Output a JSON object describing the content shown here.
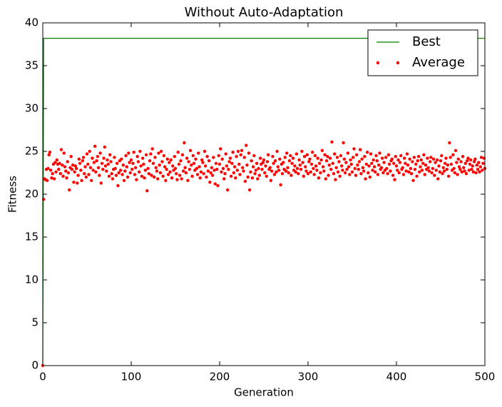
{
  "chart_data": {
    "type": "scatter",
    "title": "Without Auto-Adaptation",
    "xlabel": "Generation",
    "ylabel": "Fitness",
    "xlim": [
      0,
      500
    ],
    "xticks": [
      0,
      100,
      200,
      300,
      400,
      500
    ],
    "ylim": [
      0,
      40
    ],
    "yticks": [
      0,
      5,
      10,
      15,
      20,
      25,
      30,
      35,
      40
    ],
    "legend": "upper right",
    "series": [
      {
        "name": "Best",
        "color": "#008000",
        "style": "line",
        "x": [
          0,
          1,
          500
        ],
        "values": [
          0,
          38.2,
          38.2
        ]
      },
      {
        "name": "Average",
        "color": "#ff0000",
        "style": "points",
        "x": [
          0,
          1,
          2,
          3,
          4,
          5,
          6,
          7,
          8,
          9,
          10,
          11,
          12,
          13,
          14,
          15,
          16,
          17,
          18,
          19,
          20,
          21,
          22,
          23,
          24,
          25,
          26,
          27,
          28,
          29,
          30,
          31,
          32,
          33,
          34,
          35,
          36,
          37,
          38,
          39,
          40,
          41,
          42,
          43,
          44,
          45,
          46,
          47,
          48,
          49,
          50,
          51,
          52,
          53,
          54,
          55,
          56,
          57,
          58,
          59,
          60,
          61,
          62,
          63,
          64,
          65,
          66,
          67,
          68,
          69,
          70,
          71,
          72,
          73,
          74,
          75,
          76,
          77,
          78,
          79,
          80,
          81,
          82,
          83,
          84,
          85,
          86,
          87,
          88,
          89,
          90,
          91,
          92,
          93,
          94,
          95,
          96,
          97,
          98,
          99,
          100,
          101,
          102,
          103,
          104,
          105,
          106,
          107,
          108,
          109,
          110,
          111,
          112,
          113,
          114,
          115,
          116,
          117,
          118,
          119,
          120,
          121,
          122,
          123,
          124,
          125,
          126,
          127,
          128,
          129,
          130,
          131,
          132,
          133,
          134,
          135,
          136,
          137,
          138,
          139,
          140,
          141,
          142,
          143,
          144,
          145,
          146,
          147,
          148,
          149,
          150,
          151,
          152,
          153,
          154,
          155,
          156,
          157,
          158,
          159,
          160,
          161,
          162,
          163,
          164,
          165,
          166,
          167,
          168,
          169,
          170,
          171,
          172,
          173,
          174,
          175,
          176,
          177,
          178,
          179,
          180,
          181,
          182,
          183,
          184,
          185,
          186,
          187,
          188,
          189,
          190,
          191,
          192,
          193,
          194,
          195,
          196,
          197,
          198,
          199,
          200,
          201,
          202,
          203,
          204,
          205,
          206,
          207,
          208,
          209,
          210,
          211,
          212,
          213,
          214,
          215,
          216,
          217,
          218,
          219,
          220,
          221,
          222,
          223,
          224,
          225,
          226,
          227,
          228,
          229,
          230,
          231,
          232,
          233,
          234,
          235,
          236,
          237,
          238,
          239,
          240,
          241,
          242,
          243,
          244,
          245,
          246,
          247,
          248,
          249,
          250,
          251,
          252,
          253,
          254,
          255,
          256,
          257,
          258,
          259,
          260,
          261,
          262,
          263,
          264,
          265,
          266,
          267,
          268,
          269,
          270,
          271,
          272,
          273,
          274,
          275,
          276,
          277,
          278,
          279,
          280,
          281,
          282,
          283,
          284,
          285,
          286,
          287,
          288,
          289,
          290,
          291,
          292,
          293,
          294,
          295,
          296,
          297,
          298,
          299,
          300,
          301,
          302,
          303,
          304,
          305,
          306,
          307,
          308,
          309,
          310,
          311,
          312,
          313,
          314,
          315,
          316,
          317,
          318,
          319,
          320,
          321,
          322,
          323,
          324,
          325,
          326,
          327,
          328,
          329,
          330,
          331,
          332,
          333,
          334,
          335,
          336,
          337,
          338,
          339,
          340,
          341,
          342,
          343,
          344,
          345,
          346,
          347,
          348,
          349,
          350,
          351,
          352,
          353,
          354,
          355,
          356,
          357,
          358,
          359,
          360,
          361,
          362,
          363,
          364,
          365,
          366,
          367,
          368,
          369,
          370,
          371,
          372,
          373,
          374,
          375,
          376,
          377,
          378,
          379,
          380,
          381,
          382,
          383,
          384,
          385,
          386,
          387,
          388,
          389,
          390,
          391,
          392,
          393,
          394,
          395,
          396,
          397,
          398,
          399,
          400,
          401,
          402,
          403,
          404,
          405,
          406,
          407,
          408,
          409,
          410,
          411,
          412,
          413,
          414,
          415,
          416,
          417,
          418,
          419,
          420,
          421,
          422,
          423,
          424,
          425,
          426,
          427,
          428,
          429,
          430,
          431,
          432,
          433,
          434,
          435,
          436,
          437,
          438,
          439,
          440,
          441,
          442,
          443,
          444,
          445,
          446,
          447,
          448,
          449,
          450,
          451,
          452,
          453,
          454,
          455,
          456,
          457,
          458,
          459,
          460,
          461,
          462,
          463,
          464,
          465,
          466,
          467,
          468,
          469,
          470,
          471,
          472,
          473,
          474,
          475,
          476,
          477,
          478,
          479,
          480,
          481,
          482,
          483,
          484,
          485,
          486,
          487,
          488,
          489,
          490,
          491,
          492,
          493,
          494,
          495,
          496,
          497,
          498,
          499,
          500
        ],
        "values": [
          0,
          19.4,
          21.8,
          21.7,
          22.9,
          21.6,
          23.0,
          24.6,
          24.9,
          22.8,
          21.9,
          22.4,
          23.5,
          21.8,
          23.7,
          22.6,
          24.0,
          23.5,
          22.9,
          23.6,
          22.4,
          25.2,
          23.4,
          22.1,
          24.8,
          23.2,
          22.7,
          21.9,
          23.8,
          22.5,
          20.5,
          23.1,
          24.4,
          22.9,
          23.4,
          21.4,
          22.6,
          23.3,
          23.0,
          21.3,
          22.2,
          24.1,
          23.6,
          22.8,
          21.6,
          23.9,
          24.3,
          22.4,
          23.2,
          22.0,
          24.7,
          23.5,
          22.3,
          25.0,
          23.1,
          21.6,
          24.2,
          22.8,
          23.7,
          25.6,
          22.6,
          23.9,
          24.4,
          23.1,
          22.2,
          24.8,
          21.3,
          23.6,
          22.9,
          24.2,
          25.5,
          23.3,
          22.7,
          24.0,
          23.5,
          22.1,
          24.6,
          23.8,
          22.4,
          21.8,
          22.9,
          24.3,
          23.0,
          22.2,
          23.6,
          21.0,
          22.5,
          23.9,
          22.8,
          24.1,
          22.3,
          23.4,
          21.6,
          22.7,
          24.5,
          23.2,
          22.0,
          24.8,
          23.7,
          22.5,
          24.0,
          22.9,
          23.6,
          24.9,
          22.3,
          23.1,
          21.7,
          24.4,
          23.8,
          22.6,
          25.0,
          23.3,
          22.1,
          24.2,
          23.5,
          21.9,
          22.8,
          24.6,
          20.4,
          23.0,
          22.4,
          23.9,
          24.7,
          22.2,
          25.3,
          23.6,
          22.0,
          24.3,
          23.1,
          22.7,
          21.8,
          24.8,
          23.4,
          22.5,
          25.0,
          23.8,
          22.1,
          24.5,
          23.2,
          21.6,
          22.9,
          24.1,
          22.3,
          23.7,
          22.6,
          24.0,
          21.9,
          23.3,
          22.8,
          24.4,
          23.0,
          22.4,
          21.7,
          24.9,
          23.5,
          22.2,
          23.9,
          21.8,
          24.6,
          22.7,
          26.0,
          23.1,
          22.5,
          24.2,
          21.6,
          23.8,
          22.9,
          25.1,
          23.4,
          22.1,
          24.5,
          23.6,
          22.8,
          24.1,
          23.0,
          22.3,
          24.8,
          23.2,
          21.9,
          22.6,
          24.0,
          23.7,
          22.4,
          25.0,
          23.3,
          22.0,
          24.4,
          22.7,
          23.9,
          21.4,
          22.5,
          23.1,
          22.2,
          24.3,
          22.8,
          21.2,
          23.6,
          22.9,
          21.0,
          24.5,
          23.5,
          25.3,
          22.6,
          24.1,
          23.0,
          21.8,
          22.4,
          24.7,
          23.3,
          20.5,
          22.9,
          23.8,
          24.2,
          22.1,
          23.6,
          24.9,
          22.5,
          23.2,
          21.9,
          24.4,
          22.8,
          25.0,
          23.5,
          22.3,
          24.6,
          25.1,
          23.1,
          22.7,
          24.3,
          21.5,
          25.7,
          23.4,
          22.0,
          24.8,
          20.5,
          22.6,
          23.9,
          21.9,
          23.2,
          24.5,
          22.4,
          22.8,
          23.6,
          21.8,
          23.0,
          22.2,
          24.2,
          23.5,
          22.9,
          23.7,
          24.0,
          22.5,
          23.3,
          22.1,
          23.8,
          24.6,
          22.9,
          23.1,
          21.6,
          22.7,
          24.4,
          23.6,
          22.3,
          23.9,
          22.6,
          25.0,
          23.2,
          22.8,
          24.1,
          21.1,
          23.5,
          22.4,
          23.7,
          22.9,
          24.3,
          22.7,
          24.8,
          23.1,
          22.5,
          23.9,
          24.5,
          22.2,
          23.6,
          24.2,
          22.8,
          23.3,
          22.6,
          24.7,
          23.0,
          22.4,
          24.0,
          23.4,
          22.9,
          25.0,
          23.7,
          22.1,
          24.4,
          23.2,
          22.7,
          24.6,
          22.4,
          23.8,
          24.1,
          22.6,
          23.5,
          24.9,
          23.0,
          22.3,
          24.5,
          23.3,
          22.8,
          24.2,
          21.9,
          23.6,
          22.5,
          24.0,
          25.1,
          23.2,
          22.7,
          24.6,
          21.8,
          23.9,
          24.4,
          22.2,
          23.4,
          24.2,
          22.9,
          26.1,
          23.6,
          22.4,
          24.7,
          21.7,
          23.1,
          24.3,
          22.6,
          23.8,
          22.1,
          24.5,
          23.3,
          22.8,
          26.0,
          24.1,
          22.5,
          23.7,
          22.9,
          24.8,
          23.2,
          22.3,
          24.0,
          23.5,
          22.6,
          24.3,
          25.3,
          23.0,
          22.2,
          24.6,
          23.4,
          22.9,
          23.8,
          25.2,
          22.4,
          24.1,
          23.1,
          22.7,
          24.4,
          21.8,
          23.5,
          24.9,
          22.5,
          23.3,
          22.0,
          24.7,
          23.6,
          22.8,
          24.0,
          23.2,
          22.6,
          24.5,
          23.9,
          22.3,
          23.4,
          24.8,
          22.9,
          23.1,
          24.2,
          22.5,
          23.7,
          22.8,
          24.3,
          23.0,
          22.4,
          24.6,
          23.5,
          22.7,
          23.9,
          24.1,
          22.2,
          23.6,
          21.7,
          24.4,
          23.3,
          22.8,
          24.0,
          22.5,
          23.7,
          24.5,
          22.9,
          23.1,
          22.3,
          24.2,
          23.6,
          22.7,
          24.7,
          23.4,
          22.6,
          24.1,
          23.0,
          22.4,
          23.8,
          21.6,
          24.3,
          22.9,
          23.5,
          22.1,
          23.9,
          24.4,
          22.6,
          23.2,
          24.0,
          22.8,
          23.6,
          24.6,
          22.3,
          23.4,
          22.9,
          24.2,
          23.1,
          22.7,
          23.8,
          24.3,
          22.5,
          23.0,
          24.1,
          22.2,
          23.7,
          22.8,
          24.0,
          21.8,
          23.3,
          22.6,
          23.9,
          24.5,
          22.4,
          23.1,
          22.7,
          23.6,
          24.2,
          22.9,
          23.4,
          22.1,
          26.0,
          24.3,
          23.5,
          22.8,
          24.6,
          23.0,
          22.5,
          25.1,
          23.7,
          22.3,
          24.1,
          23.2,
          22.9,
          23.8,
          22.6,
          24.4,
          23.1,
          22.7,
          23.6,
          22.4,
          23.9,
          24.2,
          22.8,
          23.5,
          24.0,
          22.9,
          23.3,
          22.6,
          23.8,
          24.1,
          22.5,
          23.4,
          22.9,
          23.7,
          22.6,
          23.2,
          24.3,
          22.8,
          23.6,
          24.2,
          23.0
        ]
      }
    ]
  }
}
